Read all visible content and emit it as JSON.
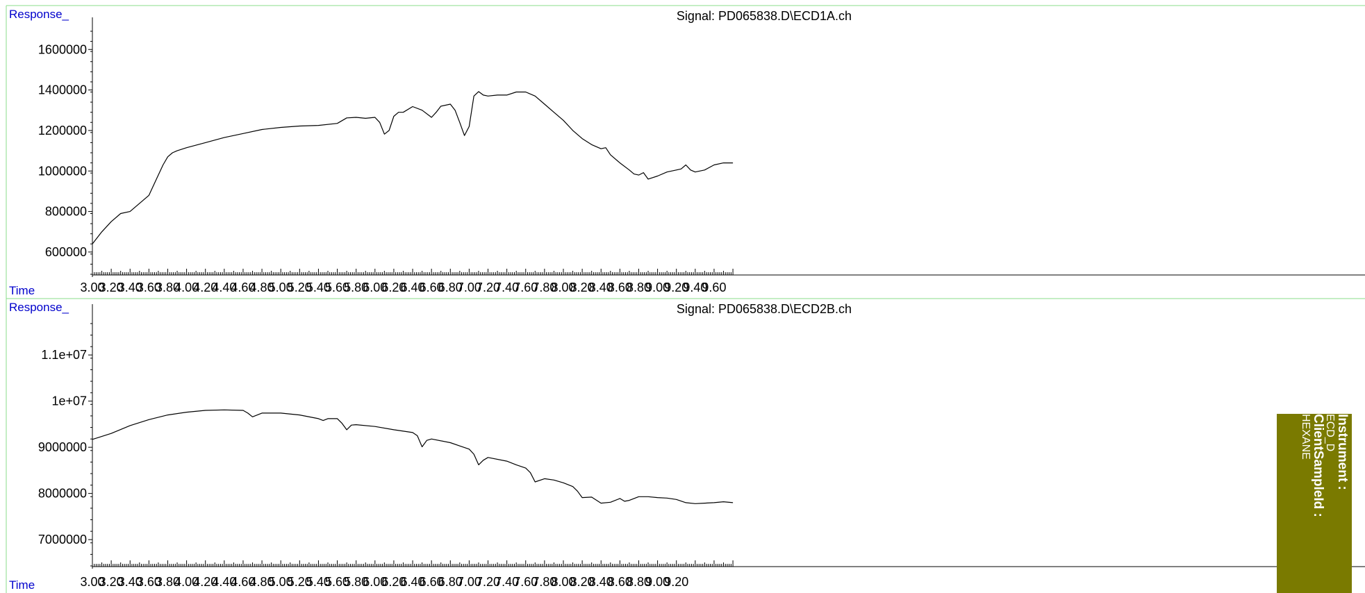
{
  "colors": {
    "frame": "#88dd88",
    "label_blue": "#0000cc",
    "trace": "#000000",
    "info_bg": "#7a7a00",
    "info_text": "#ffffff"
  },
  "chart_data": [
    {
      "type": "line",
      "title": "Signal: PD065838.D\\ECD1A.ch",
      "ylabel": "Response_",
      "xlabel": "Time",
      "xlim": [
        3.0,
        9.8
      ],
      "ylim": [
        490000,
        1690000
      ],
      "yticks": [
        {
          "value": 600000,
          "label": "600000"
        },
        {
          "value": 800000,
          "label": "800000"
        },
        {
          "value": 1000000,
          "label": "1000000"
        },
        {
          "value": 1200000,
          "label": "1200000"
        },
        {
          "value": 1400000,
          "label": "1400000"
        },
        {
          "value": 1600000,
          "label": "1600000"
        }
      ],
      "xticks": [
        "3.00",
        "3.20",
        "3.40",
        "3.60",
        "3.80",
        "4.00",
        "4.20",
        "4.40",
        "4.60",
        "4.80",
        "5.00",
        "5.20",
        "5.40",
        "5.60",
        "5.80",
        "6.00",
        "6.20",
        "6.40",
        "6.60",
        "6.80",
        "7.00",
        "7.20",
        "7.40",
        "7.60",
        "7.80",
        "8.00",
        "8.20",
        "8.40",
        "8.60",
        "8.80",
        "9.00",
        "9.20",
        "9.40",
        "9.60"
      ],
      "series": [
        {
          "x": [
            3.0,
            3.1,
            3.2,
            3.3,
            3.4,
            3.5,
            3.6,
            3.65,
            3.7,
            3.75,
            3.8,
            3.85,
            3.9,
            4.0,
            4.2,
            4.4,
            4.6,
            4.8,
            5.0,
            5.2,
            5.4,
            5.6,
            5.7,
            5.8,
            5.9,
            6.0,
            6.05,
            6.1,
            6.15,
            6.2,
            6.25,
            6.3,
            6.4,
            6.5,
            6.6,
            6.65,
            6.7,
            6.8,
            6.85,
            6.9,
            6.95,
            7.0,
            7.05,
            7.1,
            7.15,
            7.2,
            7.3,
            7.4,
            7.5,
            7.6,
            7.7,
            7.8,
            7.9,
            8.0,
            8.1,
            8.2,
            8.3,
            8.4,
            8.45,
            8.5,
            8.6,
            8.7,
            8.75,
            8.8,
            8.85,
            8.9,
            9.0,
            9.1,
            9.2,
            9.25,
            9.3,
            9.35,
            9.4,
            9.5,
            9.6,
            9.7,
            9.8
          ],
          "y": [
            640000,
            700000,
            750000,
            790000,
            800000,
            840000,
            880000,
            930000,
            980000,
            1030000,
            1070000,
            1090000,
            1100000,
            1115000,
            1140000,
            1165000,
            1185000,
            1205000,
            1215000,
            1222000,
            1225000,
            1235000,
            1262000,
            1265000,
            1260000,
            1265000,
            1240000,
            1182000,
            1200000,
            1270000,
            1290000,
            1290000,
            1318000,
            1300000,
            1265000,
            1290000,
            1320000,
            1330000,
            1300000,
            1240000,
            1175000,
            1220000,
            1370000,
            1392000,
            1375000,
            1370000,
            1375000,
            1375000,
            1390000,
            1390000,
            1370000,
            1330000,
            1290000,
            1250000,
            1200000,
            1160000,
            1130000,
            1110000,
            1115000,
            1080000,
            1040000,
            1005000,
            985000,
            980000,
            992000,
            960000,
            975000,
            995000,
            1005000,
            1010000,
            1030000,
            1005000,
            995000,
            1005000,
            1030000,
            1040000,
            1040000
          ]
        }
      ]
    },
    {
      "type": "line",
      "title": "Signal: PD065838.D\\ECD2B.ch",
      "ylabel": "Response_",
      "xlabel": "Time",
      "xlim": [
        3.0,
        9.8
      ],
      "ylim": [
        6430000,
        11800000
      ],
      "yticks": [
        {
          "value": 7000000,
          "label": "7000000"
        },
        {
          "value": 8000000,
          "label": "8000000"
        },
        {
          "value": 9000000,
          "label": "9000000"
        },
        {
          "value": 10000000,
          "label": "1e+07"
        },
        {
          "value": 11000000,
          "label": "1.1e+07"
        }
      ],
      "xticks": [
        "3.00",
        "3.20",
        "3.40",
        "3.60",
        "3.80",
        "4.00",
        "4.20",
        "4.40",
        "4.60",
        "4.80",
        "5.00",
        "5.20",
        "5.40",
        "5.60",
        "5.80",
        "6.00",
        "6.20",
        "6.40",
        "6.60",
        "6.80",
        "7.00",
        "7.20",
        "7.40",
        "7.60",
        "7.80",
        "8.00",
        "8.20",
        "8.40",
        "8.60",
        "8.80",
        "9.00",
        "9.20"
      ],
      "series": [
        {
          "x": [
            3.0,
            3.2,
            3.4,
            3.6,
            3.8,
            4.0,
            4.2,
            4.4,
            4.6,
            4.65,
            4.7,
            4.8,
            5.0,
            5.2,
            5.4,
            5.45,
            5.5,
            5.6,
            5.65,
            5.7,
            5.75,
            5.8,
            6.0,
            6.2,
            6.4,
            6.45,
            6.5,
            6.55,
            6.6,
            6.8,
            6.9,
            7.0,
            7.05,
            7.1,
            7.15,
            7.2,
            7.4,
            7.5,
            7.6,
            7.65,
            7.7,
            7.8,
            7.9,
            8.0,
            8.1,
            8.15,
            8.2,
            8.3,
            8.4,
            8.5,
            8.6,
            8.65,
            8.7,
            8.8,
            8.9,
            9.0,
            9.1,
            9.2,
            9.3,
            9.4,
            9.5,
            9.6,
            9.7,
            9.8
          ],
          "y": [
            9170000,
            9300000,
            9470000,
            9600000,
            9700000,
            9760000,
            9800000,
            9810000,
            9800000,
            9740000,
            9660000,
            9740000,
            9740000,
            9700000,
            9620000,
            9580000,
            9620000,
            9620000,
            9520000,
            9380000,
            9480000,
            9490000,
            9450000,
            9380000,
            9320000,
            9250000,
            9010000,
            9150000,
            9180000,
            9100000,
            9030000,
            8960000,
            8850000,
            8620000,
            8720000,
            8780000,
            8700000,
            8620000,
            8550000,
            8450000,
            8250000,
            8320000,
            8290000,
            8230000,
            8150000,
            8050000,
            7910000,
            7920000,
            7790000,
            7810000,
            7890000,
            7830000,
            7850000,
            7930000,
            7930000,
            7910000,
            7900000,
            7870000,
            7800000,
            7780000,
            7790000,
            7800000,
            7820000,
            7800000
          ]
        }
      ]
    }
  ],
  "info_box": {
    "instrument_label": "Instrument :",
    "instrument_value": "ECD_D",
    "client_label": "ClientSampleId :",
    "client_value": "HEXANE"
  }
}
